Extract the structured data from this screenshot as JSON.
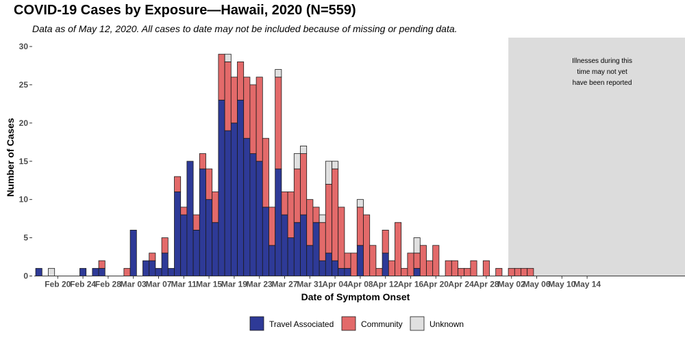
{
  "chart_data": {
    "type": "bar",
    "stacked": true,
    "title": "COVID-19 Cases by Exposure—Hawaii, 2020 (N=559)",
    "subtitle": "Data as of May 12, 2020. All cases to date may not be included because of missing or pending data.",
    "xlabel": "Date of Symptom Onset",
    "ylabel": "Number of Cases",
    "ylim": [
      0,
      30
    ],
    "yticks": [
      0,
      5,
      10,
      15,
      20,
      25,
      30
    ],
    "x_start": "2020-02-17",
    "x_end": "2020-05-14",
    "x_tick_labels": [
      "Feb 20",
      "Feb 24",
      "Feb 28",
      "Mar 03",
      "Mar 07",
      "Mar 11",
      "Mar 15",
      "Mar 19",
      "Mar 23",
      "Mar 27",
      "Mar 31",
      "Apr 04",
      "Apr 08",
      "Apr 12",
      "Apr 16",
      "Apr 20",
      "Apr 24",
      "Apr 28",
      "May 02",
      "May 06",
      "May 10",
      "May 14"
    ],
    "legend_position": "bottom",
    "grid": false,
    "colors": {
      "travel": "#2e3a97",
      "community": "#e36a6a",
      "unknown": "#e0e0e0",
      "shade": "#dcdcdc",
      "outline": "#1a1a1a"
    },
    "annotation": {
      "lines": [
        "Illnesses during this",
        "time may not yet",
        "have been reported"
      ],
      "shade_from": "2020-05-02",
      "shade_to": "2020-05-14"
    },
    "categories": [
      "2020-02-17",
      "2020-02-18",
      "2020-02-19",
      "2020-02-20",
      "2020-02-21",
      "2020-02-22",
      "2020-02-23",
      "2020-02-24",
      "2020-02-25",
      "2020-02-26",
      "2020-02-27",
      "2020-02-28",
      "2020-02-29",
      "2020-03-01",
      "2020-03-02",
      "2020-03-03",
      "2020-03-04",
      "2020-03-05",
      "2020-03-06",
      "2020-03-07",
      "2020-03-08",
      "2020-03-09",
      "2020-03-10",
      "2020-03-11",
      "2020-03-12",
      "2020-03-13",
      "2020-03-14",
      "2020-03-15",
      "2020-03-16",
      "2020-03-17",
      "2020-03-18",
      "2020-03-19",
      "2020-03-20",
      "2020-03-21",
      "2020-03-22",
      "2020-03-23",
      "2020-03-24",
      "2020-03-25",
      "2020-03-26",
      "2020-03-27",
      "2020-03-28",
      "2020-03-29",
      "2020-03-30",
      "2020-03-31",
      "2020-04-01",
      "2020-04-02",
      "2020-04-03",
      "2020-04-04",
      "2020-04-05",
      "2020-04-06",
      "2020-04-07",
      "2020-04-08",
      "2020-04-09",
      "2020-04-10",
      "2020-04-11",
      "2020-04-12",
      "2020-04-13",
      "2020-04-14",
      "2020-04-15",
      "2020-04-16",
      "2020-04-17",
      "2020-04-18",
      "2020-04-19",
      "2020-04-20",
      "2020-04-21",
      "2020-04-22",
      "2020-04-23",
      "2020-04-24",
      "2020-04-25",
      "2020-04-26",
      "2020-04-27",
      "2020-04-28",
      "2020-04-29",
      "2020-04-30",
      "2020-05-01",
      "2020-05-02",
      "2020-05-03",
      "2020-05-04",
      "2020-05-05"
    ],
    "series": [
      {
        "name": "Travel Associated",
        "key": "travel",
        "values": [
          1,
          0,
          0,
          0,
          0,
          0,
          0,
          1,
          0,
          1,
          1,
          0,
          0,
          0,
          0,
          6,
          0,
          2,
          2,
          1,
          3,
          1,
          11,
          8,
          15,
          6,
          14,
          10,
          7,
          23,
          19,
          20,
          23,
          18,
          16,
          15,
          9,
          4,
          14,
          8,
          5,
          7,
          8,
          4,
          7,
          2,
          3,
          2,
          1,
          1,
          0,
          4,
          0,
          0,
          0,
          3,
          0,
          0,
          0,
          0,
          1,
          0,
          0,
          0,
          0,
          0,
          0,
          0,
          0,
          0,
          0,
          0,
          0,
          0,
          0,
          0,
          0,
          0,
          0
        ]
      },
      {
        "name": "Community",
        "key": "community",
        "values": [
          0,
          0,
          0,
          0,
          0,
          0,
          0,
          0,
          0,
          0,
          1,
          0,
          0,
          0,
          1,
          0,
          0,
          0,
          1,
          0,
          2,
          0,
          2,
          1,
          0,
          2,
          2,
          4,
          4,
          6,
          9,
          6,
          5,
          8,
          9,
          11,
          9,
          5,
          12,
          3,
          6,
          7,
          8,
          6,
          2,
          5,
          9,
          12,
          8,
          2,
          3,
          5,
          8,
          4,
          1,
          3,
          2,
          7,
          1,
          3,
          2,
          4,
          2,
          4,
          0,
          2,
          2,
          1,
          1,
          2,
          0,
          2,
          0,
          1,
          0,
          1,
          1,
          1,
          1
        ]
      },
      {
        "name": "Unknown",
        "key": "unknown",
        "values": [
          0,
          0,
          1,
          0,
          0,
          0,
          0,
          0,
          0,
          0,
          0,
          0,
          0,
          0,
          0,
          0,
          0,
          0,
          0,
          0,
          0,
          0,
          0,
          0,
          0,
          0,
          0,
          0,
          0,
          0,
          1,
          0,
          0,
          0,
          0,
          0,
          0,
          0,
          1,
          0,
          0,
          2,
          1,
          0,
          0,
          1,
          3,
          1,
          0,
          0,
          0,
          1,
          0,
          0,
          0,
          0,
          0,
          0,
          0,
          0,
          2,
          0,
          0,
          0,
          0,
          0,
          0,
          0,
          0,
          0,
          0,
          0,
          0,
          0,
          0,
          0,
          0,
          0,
          0
        ]
      }
    ]
  }
}
